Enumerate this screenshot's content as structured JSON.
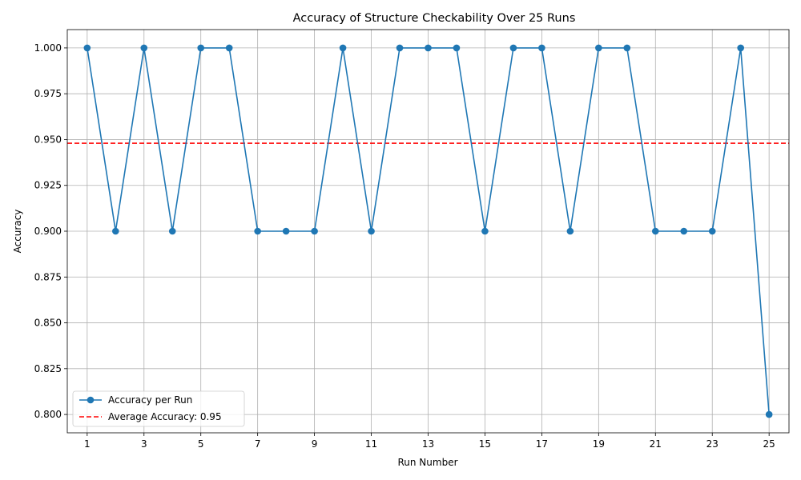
{
  "chart_data": {
    "type": "line",
    "title": "Accuracy of Structure Checkability Over 25 Runs",
    "xlabel": "Run Number",
    "ylabel": "Accuracy",
    "x": [
      1,
      2,
      3,
      4,
      5,
      6,
      7,
      8,
      9,
      10,
      11,
      12,
      13,
      14,
      15,
      16,
      17,
      18,
      19,
      20,
      21,
      22,
      23,
      24,
      25
    ],
    "xticks": [
      1,
      3,
      5,
      7,
      9,
      11,
      13,
      15,
      17,
      19,
      21,
      23,
      25
    ],
    "xlim": [
      0.3,
      25.7
    ],
    "ylim": [
      0.79,
      1.01
    ],
    "yticks": [
      0.8,
      0.825,
      0.85,
      0.875,
      0.9,
      0.925,
      0.95,
      0.975,
      1.0
    ],
    "ytick_labels": [
      "0.800",
      "0.825",
      "0.850",
      "0.875",
      "0.900",
      "0.925",
      "0.950",
      "0.975",
      "1.000"
    ],
    "grid": true,
    "legend_position": "lower-left",
    "series": [
      {
        "name": "Accuracy per Run",
        "color": "#1f77b4",
        "marker": "circle",
        "values": [
          1.0,
          0.9,
          1.0,
          0.9,
          1.0,
          1.0,
          0.9,
          0.9,
          0.9,
          1.0,
          0.9,
          1.0,
          1.0,
          1.0,
          0.9,
          1.0,
          1.0,
          0.9,
          1.0,
          1.0,
          0.9,
          0.9,
          0.9,
          1.0,
          0.8
        ]
      }
    ],
    "reference_lines": [
      {
        "name": "Average Accuracy: 0.95",
        "value": 0.948,
        "color": "#ff0000",
        "style": "dashed"
      }
    ]
  }
}
